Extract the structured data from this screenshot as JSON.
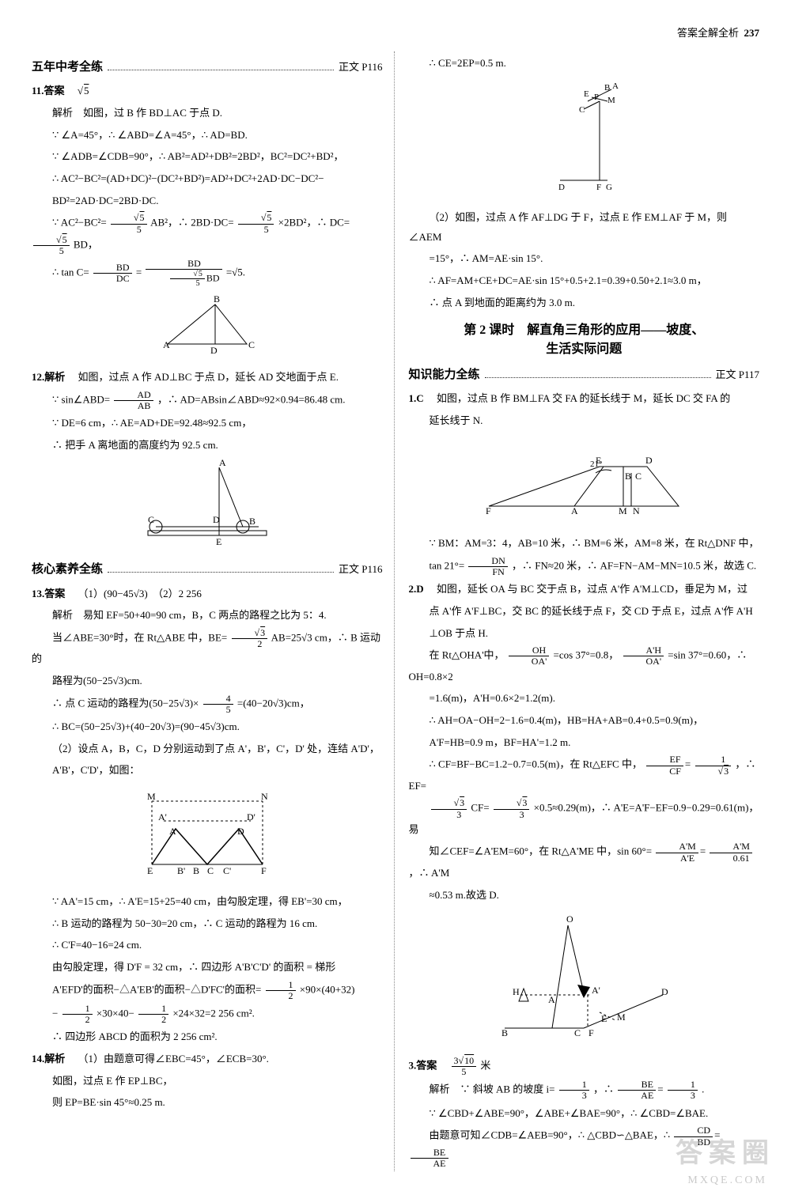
{
  "page_header": {
    "label": "答案全解全析",
    "num": "237"
  },
  "watermark": {
    "text": "答案圈",
    "url": "MXQE.COM"
  },
  "left": {
    "sec1": {
      "title": "五年中考全练",
      "pref": "正文 P116"
    },
    "q11_no": "11.答案",
    "q11_ans": "√5",
    "q11_l1": "解析　如图，过 B 作 BD⊥AC 于点 D.",
    "q11_l2": "∵ ∠A=45°，∴ ∠ABD=∠A=45°，∴ AD=BD.",
    "q11_l3": "∵ ∠ADB=∠CDB=90°，∴ AB²=AD²+DB²=2BD²，BC²=DC²+BD²，",
    "q11_l4": "∴ AC²−BC²=(AD+DC)²−(DC²+BD²)=AD²+DC²+2AD·DC−DC²−",
    "q11_l5": "BD²=2AD·DC=2BD·DC.",
    "q11_l6a": "∵ AC²−BC²=",
    "q11_l6b": "AB²，∴ 2BD·DC=",
    "q11_l6c": "×2BD²，∴ DC=",
    "q11_l6d": "BD，",
    "q11_l7a": "∴ tan C=",
    "q11_l7b": "=",
    "q11_l7c": "=√5.",
    "q12_no": "12.解析",
    "q12_l1": "如图，过点 A 作 AD⊥BC 于点 D，延长 AD 交地面于点 E.",
    "q12_l2a": "∵ sin∠ABD=",
    "q12_l2b": "，∴ AD=ABsin∠ABD≈92×0.94=86.48 cm.",
    "q12_l3": "∵ DE=6 cm，∴ AE=AD+DE=92.48≈92.5 cm，",
    "q12_l4": "∴ 把手 A 离地面的高度约为 92.5 cm.",
    "sec2": {
      "title": "核心素养全练",
      "pref": "正文 P116"
    },
    "q13_no": "13.答案",
    "q13_ans": "（1）(90−45√3)　（2）2 256",
    "q13_l1": "解析　易知 EF=50+40=90 cm，B，C 两点的路程之比为 5：4.",
    "q13_l2a": "当∠ABE=30°时，在 Rt△ABE 中，BE=",
    "q13_l2b": "AB=25√3 cm，∴ B 运动的",
    "q13_l3": "路程为(50−25√3)cm.",
    "q13_l4a": "∴ 点 C 运动的路程为(50−25√3)×",
    "q13_l4b": "=(40−20√3)cm，",
    "q13_l5": "∴ BC=(50−25√3)+(40−20√3)=(90−45√3)cm.",
    "q13_l6": "（2）设点 A，B，C，D 分别运动到了点 A'，B'，C'，D' 处，连结 A'D'，",
    "q13_l7": "A'B'，C'D'，如图：",
    "q13_l8": "∵ AA'=15 cm，∴ A'E=15+25=40 cm，由勾股定理，得 EB'=30 cm，",
    "q13_l9": "∴ B 运动的路程为 50−30=20 cm，∴ C 运动的路程为 16 cm.",
    "q13_l10": "∴ C'F=40−16=24 cm.",
    "q13_l11": "由勾股定理，得 D'F = 32 cm，∴ 四边形 A'B'C'D' 的面积 = 梯形",
    "q13_l12a": "A'EFD'的面积−△A'EB'的面积−△D'FC'的面积=",
    "q13_l12b": "×90×(40+32)",
    "q13_l13a": "−",
    "q13_l13b": "×30×40−",
    "q13_l13c": "×24×32=2 256 cm².",
    "q13_l14": "∴ 四边形 ABCD 的面积为 2 256 cm².",
    "q14_no": "14.解析",
    "q14_l1": "（1）由题意可得∠EBC=45°，∠ECB=30°.",
    "q14_l2": "如图，过点 E 作 EP⊥BC，",
    "q14_l3": "则 EP=BE·sin 45°≈0.25 m."
  },
  "right": {
    "r_l1": "∴ CE=2EP=0.5 m.",
    "r_l2": "（2）如图，过点 A 作 AF⊥DG 于 F，过点 E 作 EM⊥AF 于 M，则∠AEM",
    "r_l3": "=15°，∴ AM=AE·sin 15°.",
    "r_l4": "∴ AF=AM+CE+DC=AE·sin 15°+0.5+2.1=0.39+0.50+2.1≈3.0 m，",
    "r_l5": "∴ 点 A 到地面的距离约为 3.0 m.",
    "lesson": "第 2 课时　解直角三角形的应用——坡度、\n生活实际问题",
    "sec3": {
      "title": "知识能力全练",
      "pref": "正文 P117"
    },
    "q1_no": "1.C",
    "q1_l1": "如图，过点 B 作 BM⊥FA 交 FA 的延长线于 M，延长 DC 交 FA 的",
    "q1_l2": "延长线于 N.",
    "q1_l3": "∵ BM：AM=3：4，AB=10 米，∴ BM=6 米，AM=8 米，在 Rt△DNF 中，",
    "q1_l4a": "tan 21°=",
    "q1_l4b": "，∴ FN≈20 米，∴ AF=FN−AM−MN=10.5 米，故选 C.",
    "q2_no": "2.D",
    "q2_l1": "如图，延长 OA 与 BC 交于点 B，过点 A'作 A'M⊥CD，垂足为 M，过",
    "q2_l2": "点 A'作 A'F⊥BC，交 BC 的延长线于点 F，交 CD 于点 E，过点 A'作 A'H",
    "q2_l3": "⊥OB 于点 H.",
    "q2_l4a": "在 Rt△OHA'中，",
    "q2_l4b": "=cos 37°=0.8，",
    "q2_l4c": "=sin 37°=0.60，∴ OH=0.8×2",
    "q2_l5": "=1.6(m)，A'H=0.6×2=1.2(m).",
    "q2_l6": "∴ AH=OA−OH=2−1.6=0.4(m)，HB=HA+AB=0.4+0.5=0.9(m)，",
    "q2_l7": "A'F=HB=0.9 m，BF=HA'=1.2 m.",
    "q2_l8a": "∴ CF=BF−BC=1.2−0.7=0.5(m)，在 Rt△EFC 中，",
    "q2_l8b": "，∴ EF=",
    "q2_l9a": "CF=",
    "q2_l9b": "×0.5≈0.29(m)，∴ A'E=A'F−EF=0.9−0.29=0.61(m)，易",
    "q2_l10a": "知∠CEF=∠A'EM=60°，在 Rt△A'ME 中，sin 60°=",
    "q2_l10b": "，∴ A'M",
    "q2_l11": "≈0.53 m.故选 D.",
    "q3_no": "3.答案",
    "q3_ans": " 米",
    "q3_l1a": "解析　∵ 斜坡 AB 的坡度 i=",
    "q3_l1b": "，∴ ",
    "q3_l1c": ".",
    "q3_l2": "∵ ∠CBD+∠ABE=90°，∠ABE+∠BAE=90°，∴ ∠CBD=∠BAE.",
    "q3_l3a": "由题意可知∠CDB=∠AEB=90°，∴ △CBD∽△BAE，∴ "
  }
}
